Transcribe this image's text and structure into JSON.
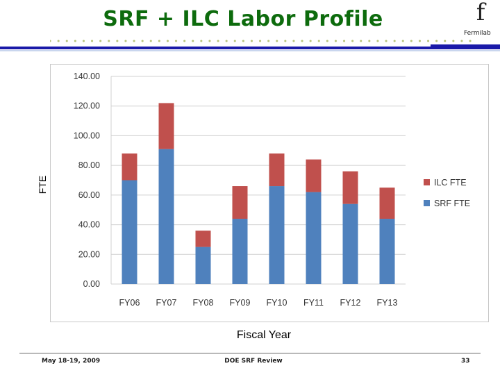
{
  "slide": {
    "title": "SRF + ILC Labor Profile",
    "logo_glyph": "f",
    "logo_text": "Fermilab",
    "footer_date": "May 18-19, 2009",
    "footer_center": "DOE SRF Review",
    "page_number": "33",
    "title_color": "#0d6b0d",
    "rule_color": "#1a1aa8"
  },
  "chart_data": {
    "type": "bar",
    "stacked": true,
    "categories": [
      "FY06",
      "FY07",
      "FY08",
      "FY09",
      "FY10",
      "FY11",
      "FY12",
      "FY13"
    ],
    "series": [
      {
        "name": "SRF FTE",
        "color": "#4f81bd",
        "values": [
          70,
          91,
          25,
          44,
          66,
          62,
          54,
          44
        ]
      },
      {
        "name": "ILC FTE",
        "color": "#c0504d",
        "values": [
          18,
          31,
          11,
          22,
          22,
          22,
          22,
          21
        ]
      }
    ],
    "xlabel": "Fiscal Year",
    "ylabel": "FTE",
    "ylim": [
      0,
      140
    ],
    "yticks": [
      "0.00",
      "20.00",
      "40.00",
      "60.00",
      "80.00",
      "100.00",
      "120.00",
      "140.00"
    ],
    "legend_order": [
      "ILC FTE",
      "SRF FTE"
    ],
    "legend_position": "right",
    "grid": true
  }
}
